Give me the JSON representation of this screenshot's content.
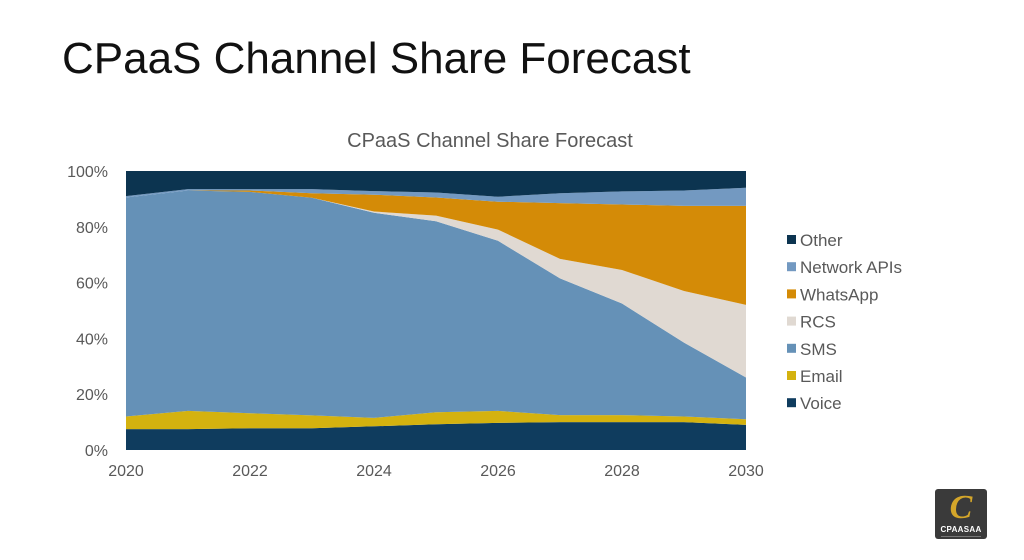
{
  "slide": {
    "title": "CPaaS Channel Share Forecast"
  },
  "logo": {
    "glyph": "C",
    "text": "CPAASAA"
  },
  "chart_data": {
    "type": "area",
    "stacked": true,
    "title": "CPaaS Channel Share Forecast",
    "xlabel": "",
    "ylabel": "",
    "x": [
      2020,
      2021,
      2022,
      2023,
      2024,
      2025,
      2026,
      2027,
      2028,
      2029,
      2030
    ],
    "xticks": [
      "2020",
      "2022",
      "2024",
      "2026",
      "2028",
      "2030"
    ],
    "yticks": [
      "0%",
      "20%",
      "40%",
      "60%",
      "80%",
      "100%"
    ],
    "ylim": [
      0,
      100
    ],
    "legend_position": "right",
    "series": [
      {
        "name": "Voice",
        "color": "#0f3c5e",
        "values": [
          7.5,
          7.5,
          7.8,
          7.8,
          8.5,
          9.2,
          9.7,
          10,
          10,
          10,
          9
        ]
      },
      {
        "name": "Email",
        "color": "#d4b20f",
        "values": [
          4.5,
          6.5,
          5.4,
          4.6,
          3,
          4.3,
          4.3,
          2.5,
          2.5,
          2,
          2
        ]
      },
      {
        "name": "SMS",
        "color": "#6591b7",
        "values": [
          78.5,
          79,
          79.3,
          78,
          73.5,
          68.5,
          61,
          49,
          40,
          26.5,
          15
        ]
      },
      {
        "name": "RCS",
        "color": "#e0d9d2",
        "values": [
          0,
          0,
          0,
          0,
          0.5,
          2,
          4,
          7,
          12,
          18.5,
          26
        ]
      },
      {
        "name": "WhatsApp",
        "color": "#d48b07",
        "values": [
          0,
          0,
          0.5,
          1.6,
          6,
          6.5,
          10,
          20,
          23.5,
          30.5,
          35.5
        ]
      },
      {
        "name": "Network APIs",
        "color": "#7399c1",
        "values": [
          0.5,
          0.5,
          0.5,
          1.5,
          1.3,
          1.8,
          1.8,
          3.5,
          4.7,
          5.5,
          6.5
        ]
      },
      {
        "name": "Other",
        "color": "#0c3450",
        "values": [
          9,
          6.5,
          6.5,
          6.5,
          7.2,
          7.7,
          9.2,
          8,
          7.3,
          7,
          6
        ]
      }
    ],
    "legend_order": [
      "Other",
      "Network APIs",
      "WhatsApp",
      "RCS",
      "SMS",
      "Email",
      "Voice"
    ]
  }
}
